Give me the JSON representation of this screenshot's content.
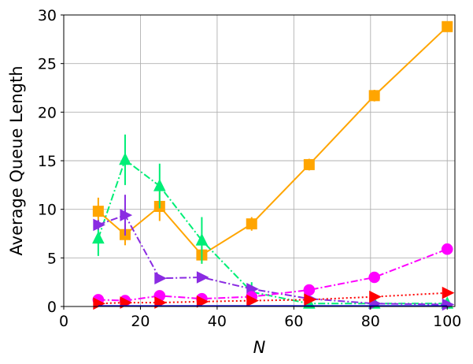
{
  "chart_data": {
    "type": "line",
    "title": "",
    "xlabel": "N",
    "ylabel": "Average Queue Length",
    "xlim": [
      0,
      102
    ],
    "ylim": [
      0,
      30
    ],
    "xticks": [
      0,
      20,
      40,
      60,
      80,
      100
    ],
    "yticks": [
      0,
      5,
      10,
      15,
      20,
      25,
      30
    ],
    "grid": true,
    "legend": "none",
    "series": [
      {
        "color": "#FFA500",
        "marker": "square",
        "line": "solid",
        "x": [
          9,
          16,
          25,
          36,
          49,
          64,
          81,
          100
        ],
        "y": [
          9.8,
          7.4,
          10.3,
          5.3,
          8.5,
          14.6,
          21.7,
          28.8
        ],
        "err": [
          1.4,
          1.1,
          1.5,
          0.9,
          0.7,
          0.6,
          0.6,
          0.5
        ]
      },
      {
        "color": "#00EE76",
        "marker": "triangle-up",
        "line": "dashdot",
        "x": [
          9,
          16,
          25,
          36,
          49,
          64,
          81,
          100
        ],
        "y": [
          7.0,
          15.1,
          12.4,
          6.8,
          1.5,
          0.3,
          0.3,
          0.3
        ],
        "err": [
          1.8,
          2.6,
          2.3,
          2.4,
          1.0,
          0.2,
          0.1,
          0.1
        ]
      },
      {
        "color": "#8A2BE2",
        "marker": "triangle-right",
        "line": "dashdot",
        "x": [
          9,
          16,
          25,
          36,
          49,
          64,
          81,
          100
        ],
        "y": [
          8.4,
          9.4,
          2.9,
          3.0,
          1.8,
          0.8,
          0.3,
          0.2
        ],
        "err": [
          0.5,
          2.1,
          0.3,
          0.3,
          0.2,
          0.2,
          0.1,
          0.1
        ]
      },
      {
        "color": "#FF00FF",
        "marker": "circle",
        "line": "dashdot",
        "x": [
          9,
          16,
          25,
          36,
          49,
          64,
          81,
          100
        ],
        "y": [
          0.7,
          0.6,
          1.1,
          0.8,
          1.0,
          1.7,
          3.0,
          5.9
        ],
        "err": [
          0.1,
          0.1,
          0.2,
          0.1,
          0.1,
          0.1,
          0.1,
          0.1
        ]
      },
      {
        "color": "#FF0000",
        "marker": "triangle-right",
        "line": "dotted",
        "x": [
          9,
          16,
          25,
          36,
          49,
          64,
          81,
          100
        ],
        "y": [
          0.3,
          0.4,
          0.4,
          0.5,
          0.6,
          0.7,
          1.0,
          1.4
        ],
        "err": [
          0,
          0,
          0,
          0,
          0,
          0,
          0,
          0
        ]
      },
      {
        "color": "#0000CD",
        "marker": "none",
        "line": "solid",
        "x": [
          9,
          16,
          25,
          36,
          49,
          64,
          81,
          100
        ],
        "y": [
          0.05,
          0.05,
          0.05,
          0.05,
          0.05,
          0.05,
          0.05,
          0.05
        ],
        "err": [
          0,
          0,
          0,
          0,
          0,
          0,
          0,
          0
        ]
      }
    ]
  }
}
